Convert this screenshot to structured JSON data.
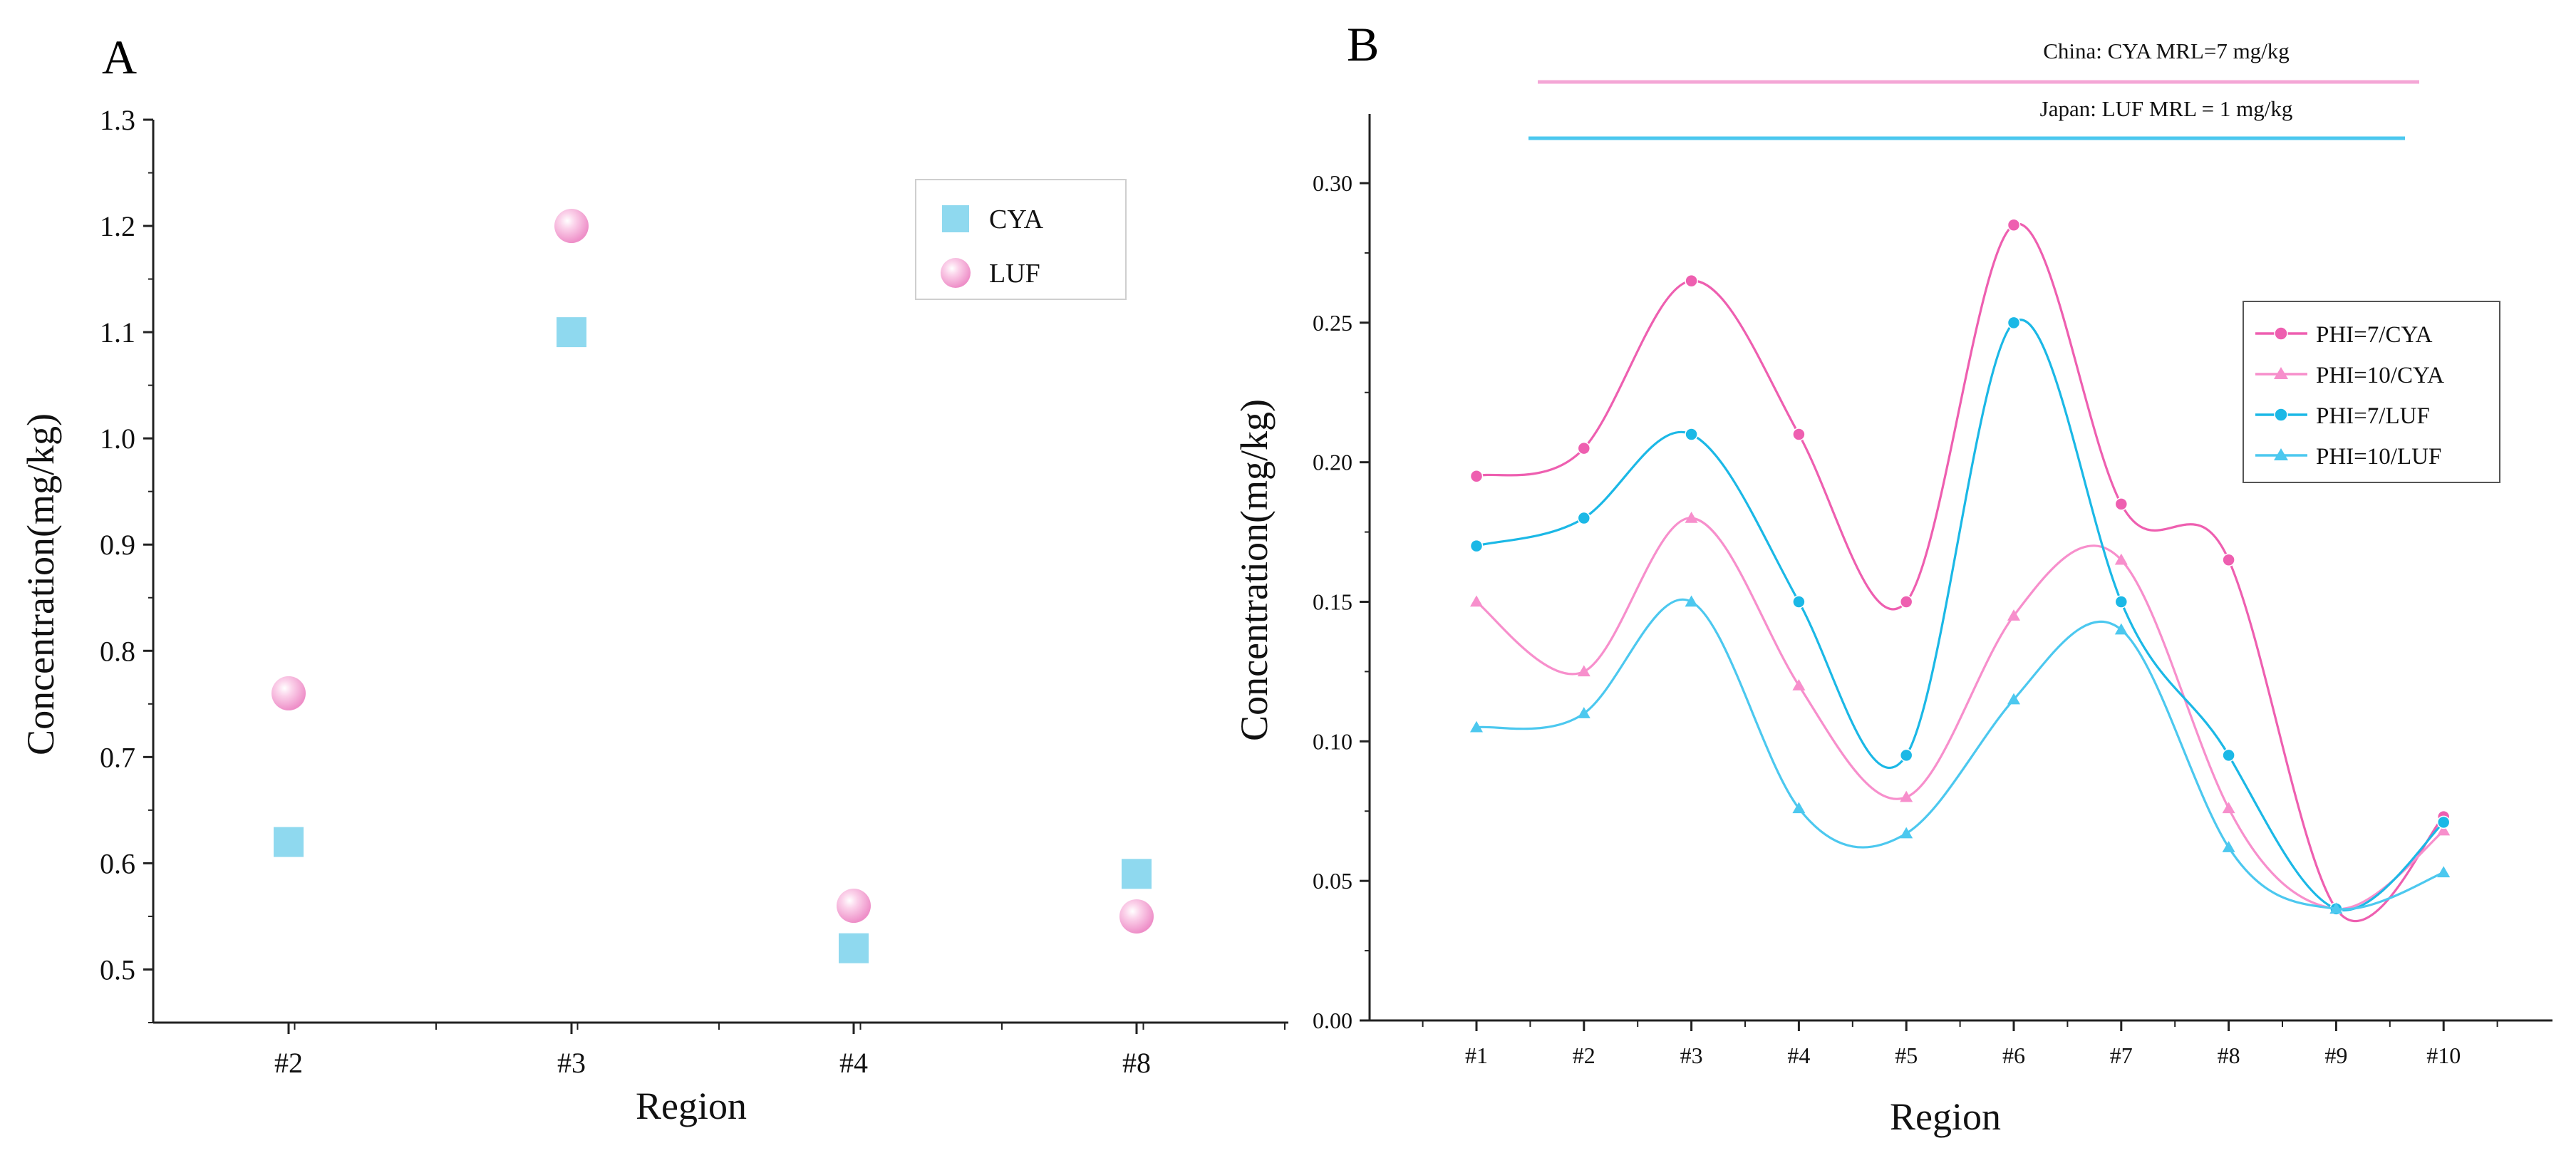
{
  "chart_data": [
    {
      "panel": "A",
      "type": "scatter",
      "categories": [
        "#2",
        "#3",
        "#4",
        "#8"
      ],
      "series": [
        {
          "name": "CYA",
          "values": [
            0.62,
            1.1,
            0.52,
            0.59
          ],
          "marker": "square",
          "color": "#8fd9ef"
        },
        {
          "name": "LUF",
          "values": [
            0.76,
            1.2,
            0.56,
            0.55
          ],
          "marker": "sphere",
          "color": "#f4a6d6"
        }
      ],
      "xlabel": "Region",
      "ylabel": "Concentration(mg/kg)",
      "ylim": [
        0.45,
        1.3
      ],
      "yticks": [
        "0.5",
        "0.6",
        "0.7",
        "0.8",
        "0.9",
        "1.0",
        "1.1",
        "1.2",
        "1.3"
      ],
      "ytick_values": [
        0.5,
        0.6,
        0.7,
        0.8,
        0.9,
        1.0,
        1.1,
        1.2,
        1.3
      ],
      "legend": "top-right",
      "grid": false
    },
    {
      "panel": "B",
      "type": "line",
      "categories": [
        "#1",
        "#2",
        "#3",
        "#4",
        "#5",
        "#6",
        "#7",
        "#8",
        "#9",
        "#10"
      ],
      "series": [
        {
          "name": "PHI=7/CYA",
          "values": [
            0.195,
            0.205,
            0.265,
            0.21,
            0.15,
            0.285,
            0.185,
            0.165,
            0.04,
            0.073
          ],
          "marker": "circle",
          "color": "#ee5fb0"
        },
        {
          "name": "PHI=10/CYA",
          "values": [
            0.15,
            0.125,
            0.18,
            0.12,
            0.08,
            0.145,
            0.165,
            0.076,
            0.04,
            0.068
          ],
          "marker": "triangle",
          "color": "#f78fcc"
        },
        {
          "name": "PHI=7/LUF",
          "values": [
            0.17,
            0.18,
            0.21,
            0.15,
            0.095,
            0.25,
            0.15,
            0.095,
            0.04,
            0.071
          ],
          "marker": "circle",
          "color": "#1bb8e6"
        },
        {
          "name": "PHI=10/LUF",
          "values": [
            0.105,
            0.11,
            0.15,
            0.076,
            0.067,
            0.115,
            0.14,
            0.062,
            0.04,
            0.053
          ],
          "marker": "triangle",
          "color": "#4cc8ef"
        }
      ],
      "xlabel": "Region",
      "ylabel": "Concentration(mg/kg)",
      "ylim": [
        0,
        0.325
      ],
      "yticks": [
        "0.00",
        "0.05",
        "0.10",
        "0.15",
        "0.20",
        "0.25",
        "0.30"
      ],
      "ytick_values": [
        0,
        0.05,
        0.1,
        0.15,
        0.2,
        0.25,
        0.3
      ],
      "legend": "right",
      "grid": false,
      "annotations": [
        {
          "text": "China: CYA MRL=7 mg/kg",
          "color": "#f4a6d6"
        },
        {
          "text": "Japan: LUF MRL = 1 mg/kg",
          "color": "#4cc8ef"
        }
      ]
    }
  ],
  "panels": {
    "a_label": "A",
    "b_label": "B"
  }
}
